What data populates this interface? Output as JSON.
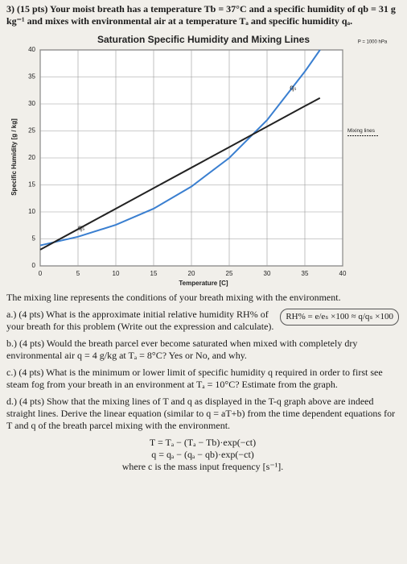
{
  "question": {
    "intro": "3) (15 pts) Your moist breath has a temperature Tb = 37°C and a specific humidity of qb = 31 g kg⁻¹ and mixes with environmental air at a temperature Tₐ and specific humidity qₐ.",
    "note": "The mixing line represents the conditions of your breath mixing with the environment.",
    "part_a": "a.) (4 pts) What is the approximate initial relative humidity RH% of your breath for this problem (Write out the expression and calculate).",
    "formula_a": "RH% = e/eₛ ×100 ≈ q/qₛ ×100",
    "part_b": "b.) (4 pts) Would the breath parcel ever become saturated when mixed with completely dry environmental air q = 4 g/kg at Tₐ = 8°C? Yes or No, and why.",
    "part_c": "c.) (4 pts) What is the minimum or lower limit of specific humidity q required in order to first see steam fog from your breath in an environment at Tₐ = 10°C? Estimate from the graph.",
    "part_d": "d.) (4 pts) Show that the mixing lines of T and q as displayed in the T-q graph above are indeed straight lines. Derive the linear equation (similar to q = aT+b) from the time dependent equations for T and q of the breath parcel mixing with the environment.",
    "eq1": "T = Tₐ − (Tₐ − Tb)·exp(−ct)",
    "eq2": "q = qₐ − (qₐ − qb)·exp(−ct)",
    "eq_note": "where c is the mass input frequency [s⁻¹]."
  },
  "chart_data": {
    "type": "line",
    "title": "Saturation Specific Humidity and Mixing Lines",
    "annotation": "P = 1000 hPa",
    "x_label": "Temperature [C]",
    "y_label": "Specific Humidity [g / kg]",
    "x": [
      0,
      5,
      10,
      15,
      20,
      25,
      30,
      35,
      37
    ],
    "series": [
      {
        "name": "qₛ",
        "color": "#3a7fd0",
        "values": [
          3.8,
          5.4,
          7.6,
          10.6,
          14.7,
          20,
          27,
          36,
          40
        ]
      },
      {
        "name": "Mixing lines",
        "color": "#222222",
        "values": [
          3,
          6.8,
          10.6,
          14.4,
          18.2,
          22,
          25.8,
          29.6,
          31.1
        ]
      }
    ],
    "xlim": [
      0,
      40
    ],
    "ylim": [
      0,
      40
    ],
    "xticks": [
      0,
      5,
      10,
      15,
      20,
      25,
      30,
      35,
      40
    ],
    "yticks": [
      0,
      5,
      10,
      15,
      20,
      25,
      30,
      35,
      40
    ],
    "grid": true
  }
}
